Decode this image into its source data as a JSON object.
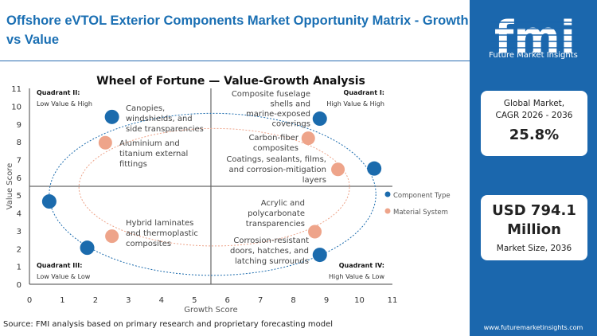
{
  "header": {
    "title": "Offshore eVTOL Exterior Components Market Opportunity Matrix - Growth vs Value"
  },
  "sidebar": {
    "logo_text": "Future Market Insights",
    "cagr_label": "Global Market, CAGR 2026 - 2036",
    "cagr_value": "25.8%",
    "size_value": "USD 794.1 Million",
    "size_label": "Market Size, 2036",
    "url": "www.futuremarketinsights.com"
  },
  "source": "Source: FMI analysis based on primary research and proprietary forecasting model",
  "chart_data": {
    "type": "scatter",
    "title": "Wheel of Fortune — Value-Growth Analysis",
    "xlabel": "Growth Score",
    "ylabel": "Value Score",
    "xlim": [
      0,
      11
    ],
    "ylim": [
      0,
      11
    ],
    "xticks": [
      0,
      1,
      2,
      3,
      4,
      5,
      6,
      7,
      8,
      9,
      10,
      11
    ],
    "yticks": [
      0,
      1,
      2,
      3,
      4,
      5,
      6,
      7,
      8,
      9,
      10,
      11
    ],
    "grid": false,
    "legend_position": "right",
    "quadrant_divider": {
      "x": 5.5,
      "y": 5.5
    },
    "quadrants": [
      {
        "name": "Quadrant I:",
        "desc": "High Value & High"
      },
      {
        "name": "Quadrant II:",
        "desc": "Low Value & High"
      },
      {
        "name": "Quadrant III:",
        "desc": "Low Value & Low"
      },
      {
        "name": "Quadrant IV:",
        "desc": "High Value & Low"
      }
    ],
    "series": [
      {
        "name": "Component Type",
        "color": "#1b6bad",
        "points": [
          {
            "x": 2.5,
            "y": 9.4,
            "label": "Canopies, windshields, and side transparencies"
          },
          {
            "x": 8.8,
            "y": 9.3,
            "label": "Composite fuselage shells and marine-exposed coverings"
          },
          {
            "x": 10.45,
            "y": 6.5,
            "label": "Coatings, sealants, films, and corrosion-mitigation layers"
          },
          {
            "x": 0.6,
            "y": 4.65,
            "label": ""
          },
          {
            "x": 1.75,
            "y": 2.05,
            "label": ""
          },
          {
            "x": 8.8,
            "y": 1.65,
            "label": "Corrosion-resistant doors, hatches, and latching surrounds"
          }
        ]
      },
      {
        "name": "Material System",
        "color": "#eea48a",
        "points": [
          {
            "x": 2.3,
            "y": 7.95,
            "label": "Aluminium and titanium external fittings"
          },
          {
            "x": 8.45,
            "y": 8.2,
            "label": "Carbon-fiber composites"
          },
          {
            "x": 9.35,
            "y": 6.45,
            "label": ""
          },
          {
            "x": 2.5,
            "y": 2.7,
            "label": "Hybrid laminates and thermoplastic composites"
          },
          {
            "x": 8.65,
            "y": 2.95,
            "label": "Acrylic and polycarbonate transparencies"
          }
        ]
      }
    ]
  }
}
